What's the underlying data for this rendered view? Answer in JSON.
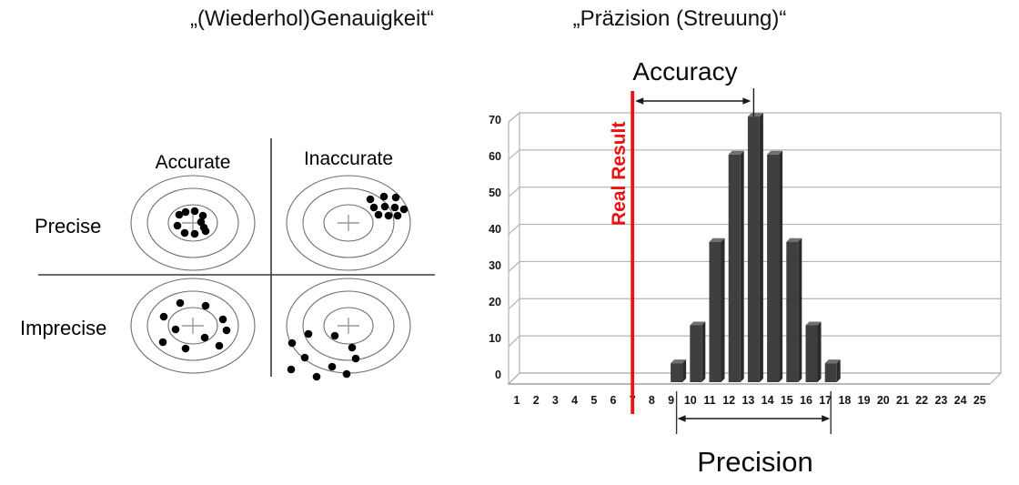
{
  "titles": {
    "left": "„(Wiederhol)Genauigkeit“",
    "right": "„Präzision (Streuung)“"
  },
  "quadrant_diagram": {
    "col_labels": [
      "Accurate",
      "Inaccurate"
    ],
    "row_labels": [
      "Precise",
      "Imprecise"
    ],
    "dot_color": "#000000",
    "clusters": {
      "precise_accurate": [
        [
          197,
          236
        ],
        [
          204,
          233
        ],
        [
          214,
          232
        ],
        [
          223,
          237
        ],
        [
          195,
          248
        ],
        [
          221,
          244
        ],
        [
          224,
          250
        ],
        [
          203,
          256
        ],
        [
          214,
          257
        ],
        [
          226,
          254
        ]
      ],
      "precise_inaccurate": [
        [
          407,
          219
        ],
        [
          422,
          216
        ],
        [
          435,
          217
        ],
        [
          411,
          228
        ],
        [
          423,
          227
        ],
        [
          434,
          228
        ],
        [
          444,
          230
        ],
        [
          416,
          236
        ],
        [
          427,
          237
        ],
        [
          437,
          237
        ]
      ],
      "imprecise_accurate": [
        [
          198,
          333
        ],
        [
          226,
          336
        ],
        [
          180,
          348
        ],
        [
          245,
          351
        ],
        [
          193,
          362
        ],
        [
          249,
          363
        ],
        [
          179,
          376
        ],
        [
          225,
          371
        ],
        [
          204,
          383
        ],
        [
          241,
          380
        ]
      ],
      "imprecise_inaccurate": [
        [
          339,
          367
        ],
        [
          368,
          369
        ],
        [
          321,
          377
        ],
        [
          387,
          382
        ],
        [
          335,
          393
        ],
        [
          391,
          394
        ],
        [
          365,
          403
        ],
        [
          320,
          406
        ],
        [
          348,
          414
        ],
        [
          381,
          411
        ]
      ]
    }
  },
  "chart_data": {
    "type": "bar",
    "categories": [
      1,
      2,
      3,
      4,
      5,
      6,
      7,
      8,
      9,
      10,
      11,
      12,
      13,
      14,
      15,
      16,
      17,
      18,
      19,
      20,
      21,
      22,
      23,
      24,
      25
    ],
    "values": [
      0,
      0,
      0,
      0,
      0,
      0,
      0,
      0,
      5,
      15,
      37,
      60,
      70,
      60,
      37,
      15,
      5,
      0,
      0,
      0,
      0,
      0,
      0,
      0,
      0
    ],
    "title": "„Präzision (Streuung)“",
    "xlabel": "",
    "ylabel": "",
    "ylim": [
      0,
      70
    ],
    "ytick_step": 10,
    "grid": true,
    "legend": "none",
    "bar_color": "#3f3f3f",
    "annotations": {
      "accuracy_label": "Accuracy",
      "precision_label": "Precision",
      "real_result_label": "Real Result",
      "real_result_x": 7,
      "real_result_color": "#ee1111",
      "accuracy_span": [
        7,
        13
      ],
      "precision_span": [
        9,
        17
      ]
    }
  }
}
